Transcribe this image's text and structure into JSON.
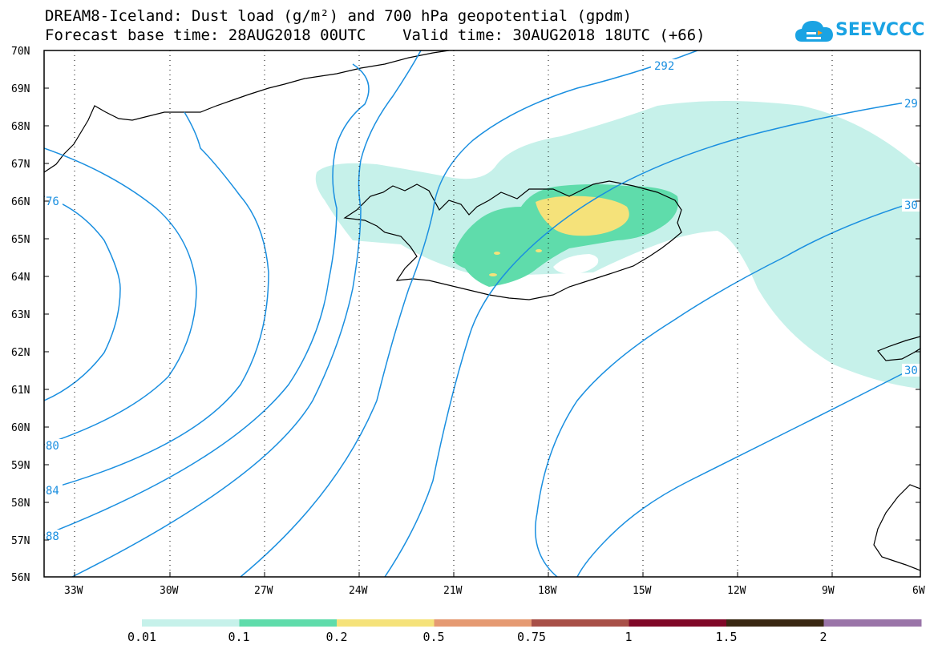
{
  "title_line1": "DREAM8-Iceland: Dust load (g/m²) and 700 hPa geopotential (gpdm)",
  "title_line2": "Forecast base time: 28AUG2018 00UTC    Valid time: 30AUG2018 18UTC (+66)",
  "logo": {
    "text": "SEEVCCC",
    "icon": "cloud-icon",
    "color": "#1aa3e3"
  },
  "map": {
    "lat_labels": [
      "70N",
      "69N",
      "68N",
      "67N",
      "66N",
      "65N",
      "64N",
      "63N",
      "62N",
      "61N",
      "60N",
      "59N",
      "58N",
      "57N",
      "56N"
    ],
    "lon_labels": [
      "33W",
      "30W",
      "27W",
      "24W",
      "21W",
      "18W",
      "15W",
      "12W",
      "9W",
      "6W"
    ],
    "contour_color": "#1a8fe0",
    "contour_labels": [
      "292",
      "29",
      "30",
      "30",
      "76",
      "80",
      "84",
      "88"
    ]
  },
  "colorbar": {
    "colors": [
      "#c6f1ea",
      "#5fdcab",
      "#f5e27a",
      "#e59a72",
      "#a85048",
      "#800828",
      "#3a2812",
      "#9a74a8"
    ],
    "labels": [
      "0.01",
      "0.1",
      "0.2",
      "0.5",
      "0.75",
      "1",
      "1.5",
      "2"
    ]
  }
}
